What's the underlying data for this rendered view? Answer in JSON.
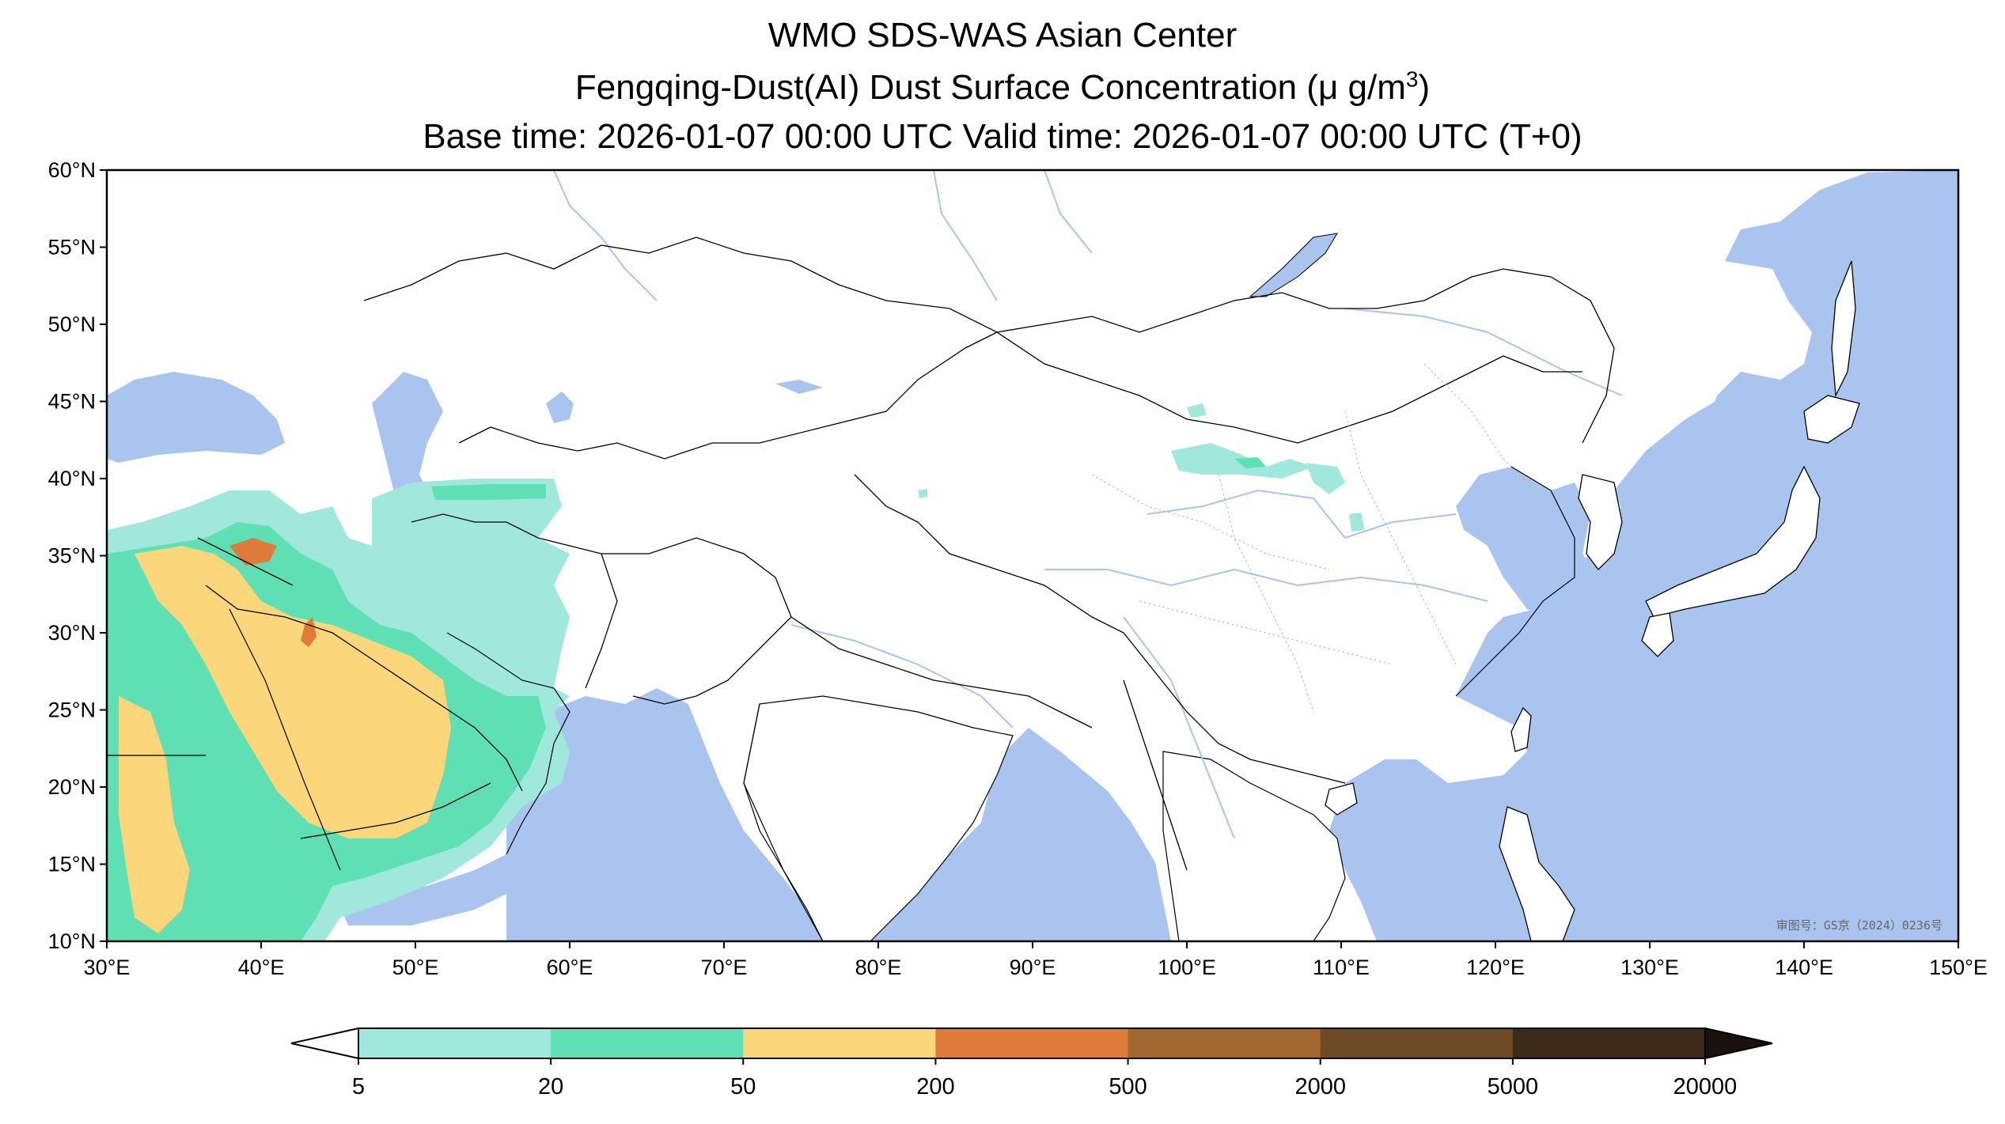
{
  "title": {
    "line1": "WMO SDS-WAS Asian Center",
    "line2_prefix": "Fengqing-Dust(AI) Dust Surface Concentration (μ g/m",
    "line2_sup": "3",
    "line2_suffix": ")",
    "line3": "Base time: 2026-01-07 00:00 UTC Valid time: 2026-01-07 00:00 UTC (T+0)"
  },
  "map": {
    "lon_range": [
      30,
      150
    ],
    "lat_range": [
      10,
      60
    ],
    "lon_ticks": [
      "30°E",
      "40°E",
      "50°E",
      "60°E",
      "70°E",
      "80°E",
      "90°E",
      "100°E",
      "110°E",
      "120°E",
      "130°E",
      "140°E",
      "150°E"
    ],
    "lat_ticks": [
      "60°N",
      "55°N",
      "50°N",
      "45°N",
      "40°N",
      "35°N",
      "30°N",
      "25°N",
      "20°N",
      "15°N",
      "10°N"
    ],
    "approval_stamp": "审图号：GS京（2024）0236号",
    "colors": {
      "ocean": "#a9c4ee",
      "land": "#ffffff",
      "border": "#000000",
      "river": "#a9c4ee"
    }
  },
  "colorbar": {
    "levels": [
      "5",
      "20",
      "50",
      "200",
      "500",
      "2000",
      "5000",
      "20000"
    ],
    "colors": [
      "#a0e8dc",
      "#5fe0b4",
      "#fcd67a",
      "#e07a3a",
      "#a0682e",
      "#6e4a26",
      "#3c2a18"
    ],
    "over_color": "#1a120c",
    "under_color": "#ffffff"
  },
  "dust_regions": [
    {
      "level": "5-20",
      "color": "#a0e8dc"
    },
    {
      "level": "20-50",
      "color": "#5fe0b4"
    },
    {
      "level": "50-200",
      "color": "#fcd67a"
    },
    {
      "level": "200-500",
      "color": "#e07a3a"
    }
  ]
}
